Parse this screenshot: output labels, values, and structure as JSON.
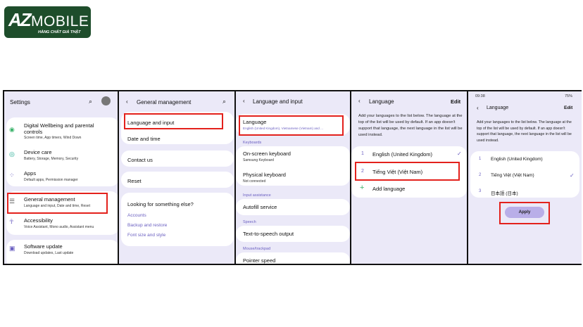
{
  "logo": {
    "brand": "AZ MOBILE",
    "tagline": "HÀNG CHẤT GIÁ THẬT"
  },
  "accent": "#6a5fc1",
  "highlight": "#e3211c",
  "s1": {
    "title": "Settings",
    "items": [
      {
        "label": "Digital Wellbeing and parental controls",
        "sub": "Screen time, App timers, Wind Down"
      },
      {
        "label": "Device care",
        "sub": "Battery, Storage, Memory, Security"
      },
      {
        "label": "Apps",
        "sub": "Default apps, Permission manager"
      },
      {
        "label": "General management",
        "sub": "Language and input, Date and time, Reset"
      },
      {
        "label": "Accessibility",
        "sub": "Voice Assistant, Mono audio, Assistant menu"
      },
      {
        "label": "Software update",
        "sub": "Download updates, Last update"
      }
    ]
  },
  "s2": {
    "title": "General management",
    "items": [
      "Language and input",
      "Date and time",
      "Contact us",
      "Reset"
    ],
    "looking": "Looking for something else?",
    "links": [
      "Accounts",
      "Backup and restore",
      "Font size and style"
    ]
  },
  "s3": {
    "title": "Language and input",
    "language": "Language",
    "language_sub": "English (United Kingdom), Vietnamese (Vietnam) and ...",
    "sec_keyboards": "Keyboards",
    "onscreen": "On-screen keyboard",
    "onscreen_sub": "Samsung Keyboard",
    "physical": "Physical keyboard",
    "physical_sub": "Not connected",
    "sec_input": "Input assistance",
    "autofill": "Autofill service",
    "sec_speech": "Speech",
    "tts": "Text-to-speech output",
    "sec_mouse": "Mouse/trackpad",
    "pointer": "Pointer speed"
  },
  "s4": {
    "title": "Language",
    "edit": "Edit",
    "desc": "Add your languages to the list below. The language at the top of the list will be used by default. If an app doesn't support that language, the next language in the list will be used instead.",
    "langs": [
      {
        "n": "1",
        "name": "English (United Kingdom)"
      },
      {
        "n": "2",
        "name": "Tiếng Việt (Việt Nam)"
      }
    ],
    "add": "Add language"
  },
  "s5": {
    "time": "09:38",
    "battery": "75%",
    "title": "Language",
    "edit": "Edit",
    "desc": "Add your languages to the list below. The language at the top of the list will be used by default. If an app doesn't support that language, the next language in the list will be used instead.",
    "langs": [
      {
        "n": "1",
        "name": "English (United Kingdom)"
      },
      {
        "n": "2",
        "name": "Tiếng Việt (Việt Nam)"
      },
      {
        "n": "3",
        "name": "日本語 (日本)"
      }
    ],
    "apply": "Apply"
  }
}
